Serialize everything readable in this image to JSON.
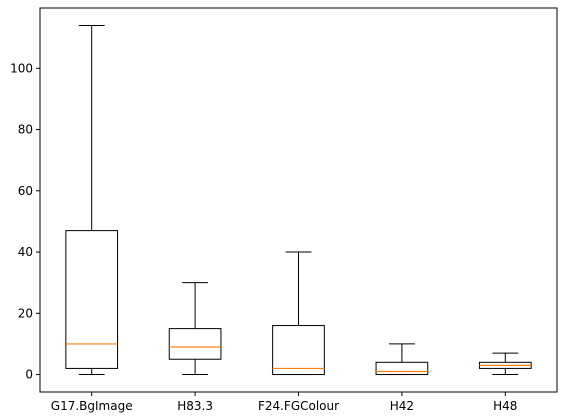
{
  "chart_data": {
    "type": "boxplot",
    "categories": [
      "G17.BgImage",
      "H83.3",
      "F24.FGColour",
      "H42",
      "H48"
    ],
    "boxes": [
      {
        "whisker_low": 0,
        "q1": 2,
        "median": 10,
        "q3": 47,
        "whisker_high": 114
      },
      {
        "whisker_low": 0,
        "q1": 5,
        "median": 9,
        "q3": 15,
        "whisker_high": 30
      },
      {
        "whisker_low": 0,
        "q1": 0,
        "median": 2,
        "q3": 16,
        "whisker_high": 40
      },
      {
        "whisker_low": 0,
        "q1": 0,
        "median": 1,
        "q3": 4,
        "whisker_high": 10
      },
      {
        "whisker_low": 0,
        "q1": 2,
        "median": 3,
        "q3": 4,
        "whisker_high": 7
      }
    ],
    "y_ticks": [
      0,
      20,
      40,
      60,
      80,
      100
    ],
    "ylim": [
      -5.7,
      119.7
    ],
    "title": "",
    "xlabel": "",
    "ylabel": "",
    "grid": false,
    "colors": {
      "box": "#000000",
      "median": "#ff7f0e",
      "axes": "#000000"
    }
  }
}
